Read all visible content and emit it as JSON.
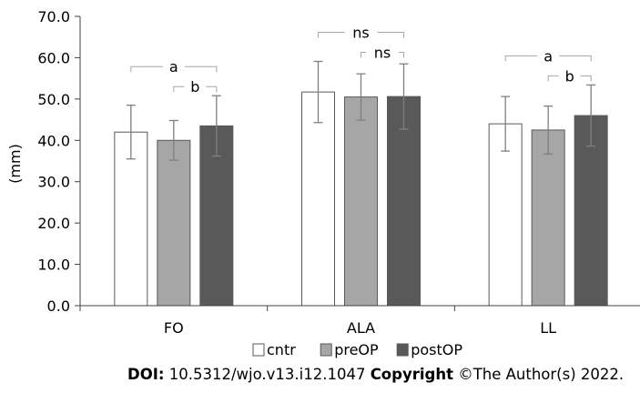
{
  "chart_data": {
    "type": "bar",
    "ylabel": "(mm)",
    "ylim": [
      0,
      70
    ],
    "ytick_step": 10,
    "yticks": [
      "0.0",
      "10.0",
      "20.0",
      "30.0",
      "40.0",
      "50.0",
      "60.0",
      "70.0"
    ],
    "categories": [
      "FO",
      "ALA",
      "LL"
    ],
    "grid": false,
    "legend_position": "bottom",
    "series": [
      {
        "name": "cntr",
        "color": "#ffffff",
        "values": [
          42.0,
          51.7,
          44.0
        ],
        "error": [
          6.5,
          7.4,
          6.6
        ]
      },
      {
        "name": "preOP",
        "color": "#a6a6a6",
        "values": [
          40.0,
          50.5,
          42.5
        ],
        "error": [
          4.8,
          5.6,
          5.8
        ]
      },
      {
        "name": "postOP",
        "color": "#595959",
        "values": [
          43.5,
          50.6,
          46.0
        ],
        "error": [
          7.3,
          7.9,
          7.4
        ]
      }
    ],
    "annotations": [
      {
        "category": "FO",
        "from": "cntr",
        "to": "postOP",
        "label": "a"
      },
      {
        "category": "FO",
        "from": "preOP",
        "to": "postOP",
        "label": "b"
      },
      {
        "category": "ALA",
        "from": "cntr",
        "to": "postOP",
        "label": "ns"
      },
      {
        "category": "ALA",
        "from": "preOP",
        "to": "postOP",
        "label": "ns"
      },
      {
        "category": "LL",
        "from": "cntr",
        "to": "postOP",
        "label": "a"
      },
      {
        "category": "LL",
        "from": "preOP",
        "to": "postOP",
        "label": "b"
      }
    ]
  },
  "footer": {
    "doi_label": "DOI:",
    "doi_value": " 10.5312/wjo.v13.i12.1047 ",
    "copyright_label": "Copyright",
    "copyright_value": " ©The Author(s) 2022."
  }
}
